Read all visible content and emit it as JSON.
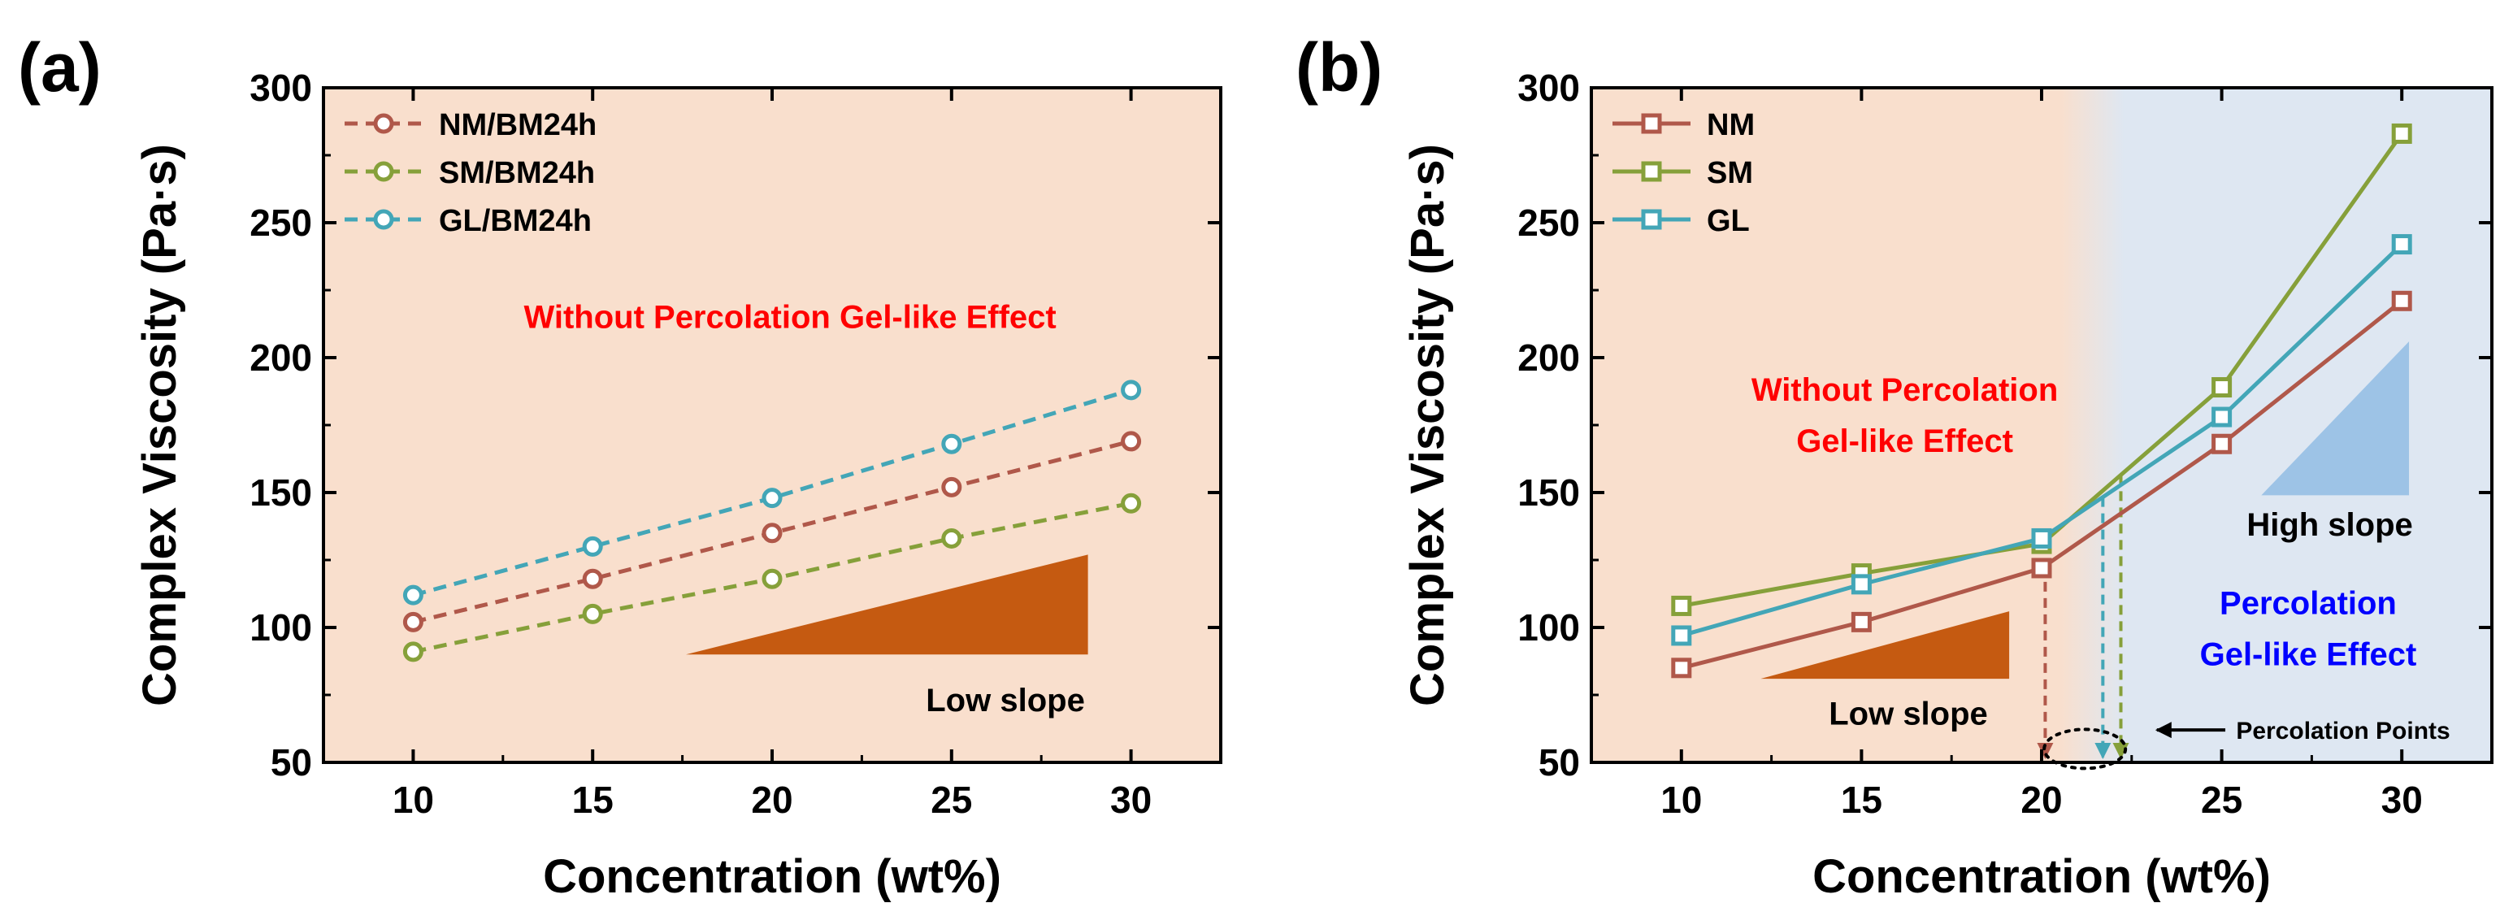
{
  "colors": {
    "nm": "#B0584A",
    "sm": "#86A03A",
    "gl": "#43A6B7",
    "bg_peach": "#F9DFCD",
    "bg_blue": "#DEE7F2",
    "slope_low": "#C55A11",
    "slope_high": "#9DC3E6",
    "red_text": "#FF0000",
    "blue_text": "#0000FF"
  },
  "chart_data": [
    {
      "type": "line",
      "panel_label": "(a)",
      "xlabel": "Concentration (wt%)",
      "ylabel": "Complex Viscosity (Pa·s)",
      "xlim": [
        7.5,
        32.5
      ],
      "ylim": [
        50,
        300
      ],
      "x": [
        10,
        15,
        20,
        25,
        30
      ],
      "x_ticks": [
        10,
        15,
        20,
        25,
        30
      ],
      "y_ticks": [
        50,
        100,
        150,
        200,
        250,
        300
      ],
      "marker": "circle",
      "line_style": "dashed",
      "series": [
        {
          "key": "nm",
          "name": "NM/BM24h",
          "values": [
            102,
            118,
            135,
            152,
            169
          ]
        },
        {
          "key": "sm",
          "name": "SM/BM24h",
          "values": [
            91,
            105,
            118,
            133,
            146
          ]
        },
        {
          "key": "gl",
          "name": "GL/BM24h",
          "values": [
            112,
            130,
            148,
            168,
            188
          ]
        }
      ],
      "annotations": {
        "effect": "Without Percolation Gel-like Effect",
        "slope": "Low slope"
      }
    },
    {
      "type": "line",
      "panel_label": "(b)",
      "xlabel": "Concentration (wt%)",
      "ylabel": "Complex Viscosity (Pa·s)",
      "xlim": [
        7.5,
        32.5
      ],
      "ylim": [
        50,
        300
      ],
      "x": [
        10,
        15,
        20,
        25,
        30
      ],
      "x_ticks": [
        10,
        15,
        20,
        25,
        30
      ],
      "y_ticks": [
        50,
        100,
        150,
        200,
        250,
        300
      ],
      "marker": "square",
      "line_style": "solid",
      "region_boundary_x": 21.4,
      "series": [
        {
          "key": "nm",
          "name": "NM",
          "values": [
            85,
            102,
            122,
            168,
            221
          ],
          "percolation_x": 20.1
        },
        {
          "key": "sm",
          "name": "SM",
          "values": [
            108,
            120,
            131,
            189,
            283
          ],
          "percolation_x": 22.2
        },
        {
          "key": "gl",
          "name": "GL",
          "values": [
            97,
            116,
            133,
            178,
            242
          ],
          "percolation_x": 21.7
        }
      ],
      "annotations": {
        "left_effect_line1": "Without Percolation",
        "left_effect_line2": "Gel-like Effect",
        "right_effect_line1": "Percolation",
        "right_effect_line2": "Gel-like Effect",
        "low_slope": "Low slope",
        "high_slope": "High slope",
        "percolation_points": "Percolation Points"
      }
    }
  ]
}
